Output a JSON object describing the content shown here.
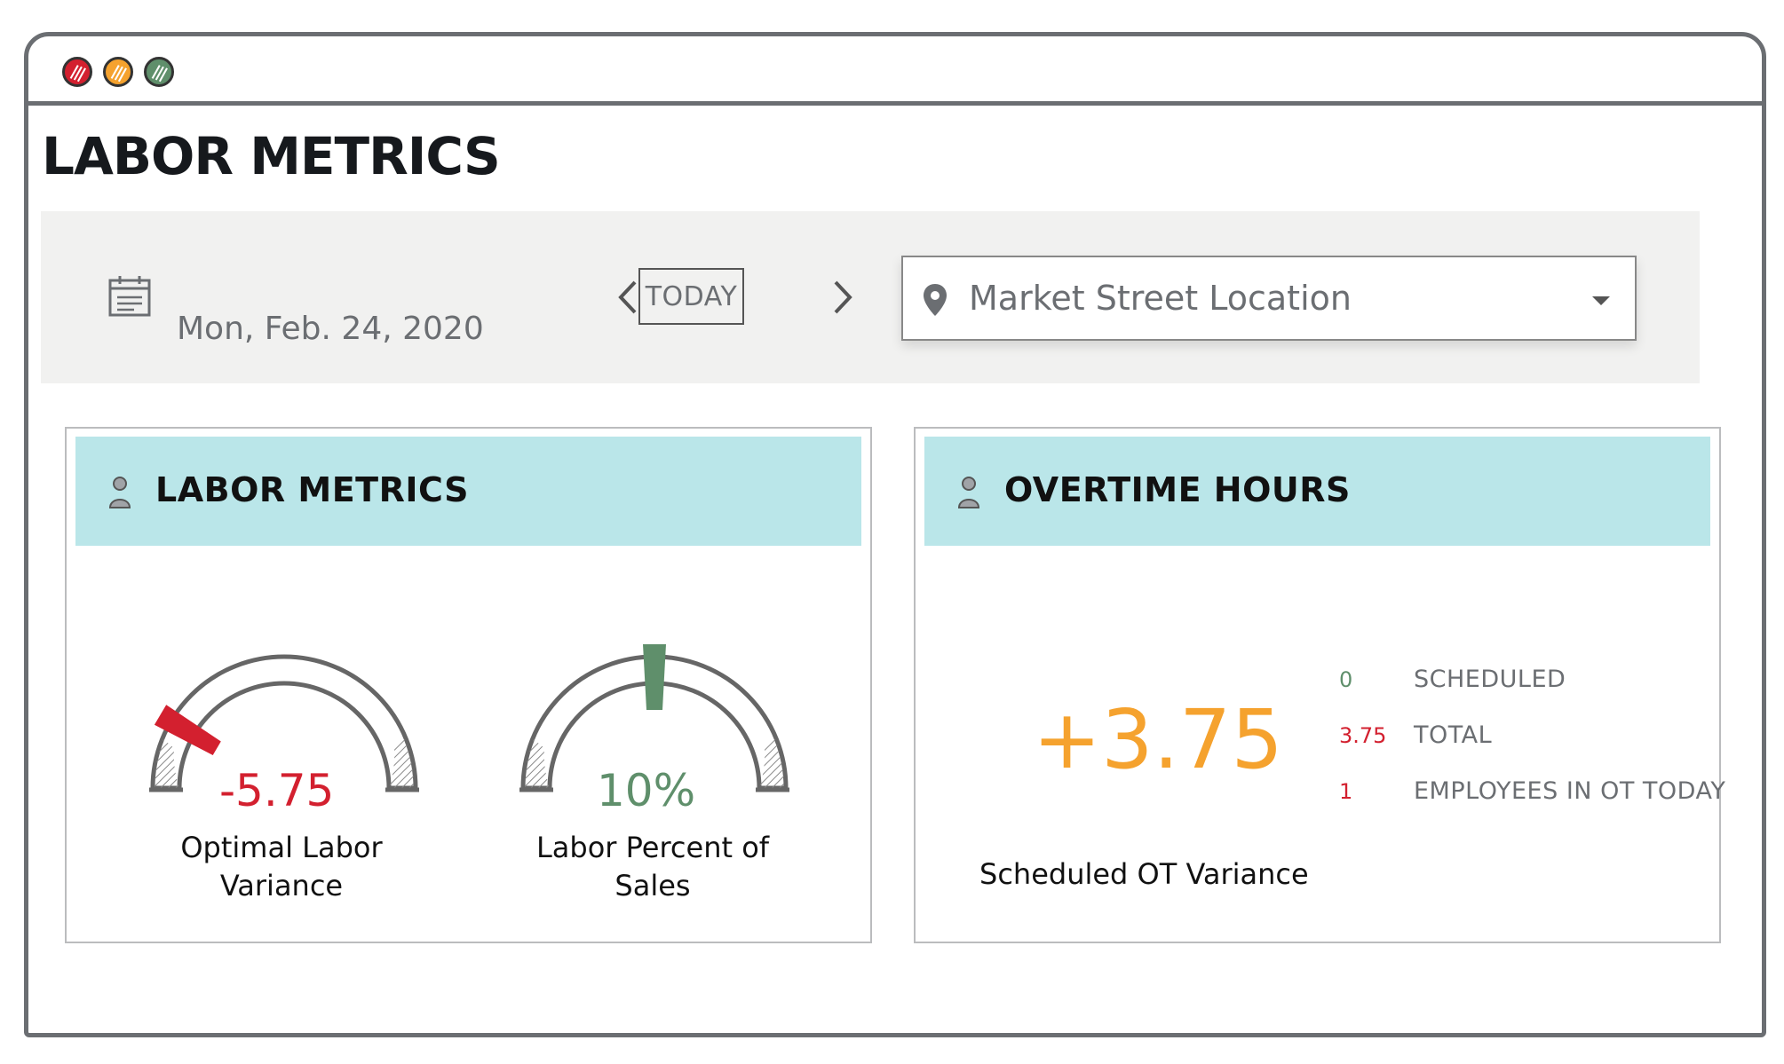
{
  "window": {
    "controls": [
      {
        "name": "close",
        "color": "#d3202f"
      },
      {
        "name": "minimize",
        "color": "#f5a22e"
      },
      {
        "name": "maximize",
        "color": "#5f8f6b"
      }
    ]
  },
  "page": {
    "title": "LABOR METRICS"
  },
  "toolbar": {
    "calendar_icon": "calendar-icon",
    "date": "Mon, Feb. 24, 2020",
    "prev_icon": "chevron-left-icon",
    "today_label": "TODAY",
    "next_icon": "chevron-right-icon",
    "location": {
      "icon": "map-pin-icon",
      "value": "Market Street Location",
      "dropdown_icon": "caret-down-icon"
    }
  },
  "labor_card": {
    "icon": "person-icon",
    "title": "LABOR METRICS",
    "gauges": [
      {
        "value": "-5.75",
        "label": "Optimal Labor Variance",
        "color": "#d3202f",
        "needle_level": 0.17
      },
      {
        "value": "10%",
        "label": "Labor Percent of Sales",
        "color": "#5f8f6b",
        "needle_level": 0.5
      }
    ]
  },
  "overtime_card": {
    "icon": "person-icon",
    "title": "OVERTIME HOURS",
    "big_value": "+3.75",
    "big_label": "Scheduled OT Variance",
    "stats": [
      {
        "value": "0",
        "label": "SCHEDULED",
        "color": "#5f8f6b"
      },
      {
        "value": "3.75",
        "label": "TOTAL",
        "color": "#d3202f"
      },
      {
        "value": "1",
        "label": "EMPLOYEES IN OT TODAY",
        "color": "#d3202f"
      }
    ]
  },
  "colors": {
    "accent_orange": "#f5a22e",
    "negative_red": "#d3202f",
    "positive_green": "#5f8f6b",
    "header_teal": "#bae6e9"
  }
}
